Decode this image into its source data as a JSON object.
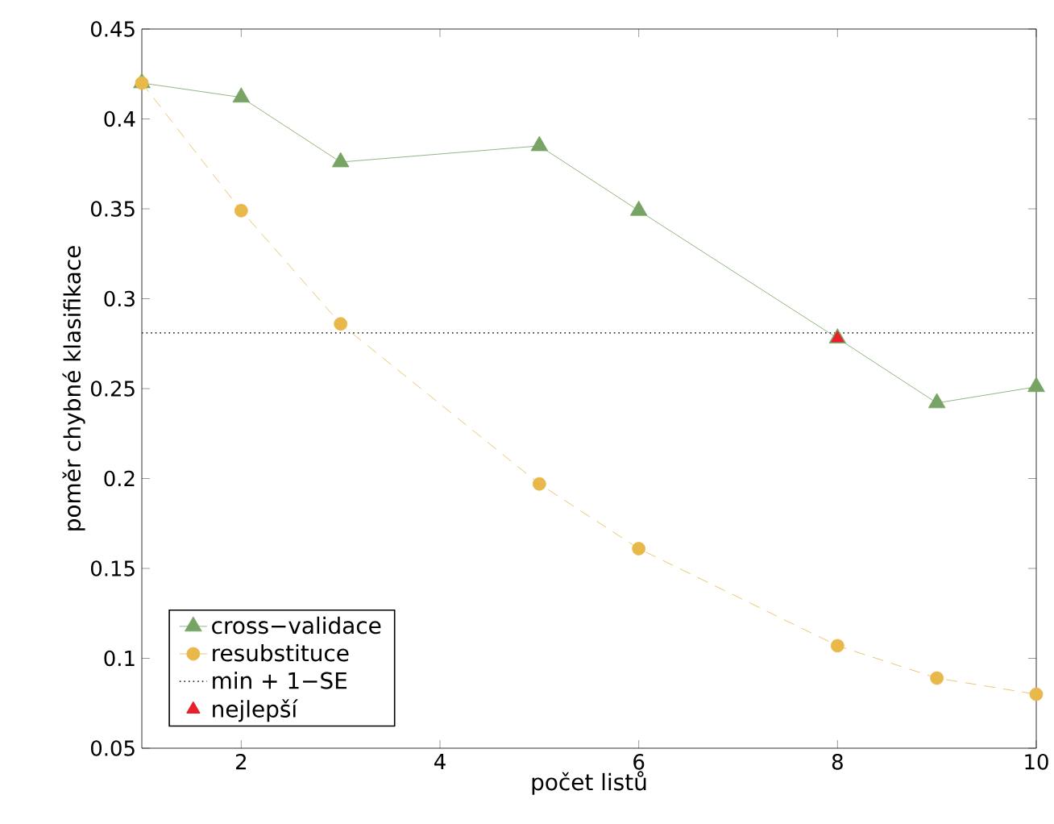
{
  "chart_data": {
    "type": "line",
    "xlabel": "počet listů",
    "ylabel": "poměr chybné klasifikace",
    "xlim": [
      1,
      10
    ],
    "ylim": [
      0.05,
      0.45
    ],
    "xticks": [
      2,
      4,
      6,
      8,
      10
    ],
    "yticks": [
      0.05,
      0.1,
      0.15,
      0.2,
      0.25,
      0.3,
      0.35,
      0.4,
      0.45
    ],
    "grid": false,
    "legend": "bottom left",
    "series": [
      {
        "name": "cross−validace",
        "color": "#77a464",
        "marker": "triangle",
        "line_style": "solid",
        "x": [
          1,
          2,
          3,
          5,
          6,
          8,
          9,
          10
        ],
        "values": [
          0.42,
          0.412,
          0.376,
          0.385,
          0.349,
          0.278,
          0.242,
          0.251
        ]
      },
      {
        "name": "resubstituce",
        "color": "#e8b84a",
        "marker": "circle",
        "line_style": "dashed",
        "x": [
          1,
          2,
          3,
          5,
          6,
          8,
          9,
          10
        ],
        "values": [
          0.42,
          0.349,
          0.286,
          0.197,
          0.161,
          0.107,
          0.089,
          0.08
        ]
      },
      {
        "name": "nejlepší",
        "type": "scatter",
        "color": "#e8202a",
        "marker": "triangle",
        "x": [
          8
        ],
        "values": [
          0.278
        ]
      }
    ],
    "ref_lines": [
      {
        "axis": "y",
        "value": 0.281,
        "label": "min + 1−SE",
        "color": "#333333",
        "line_style": "dotted"
      }
    ]
  }
}
